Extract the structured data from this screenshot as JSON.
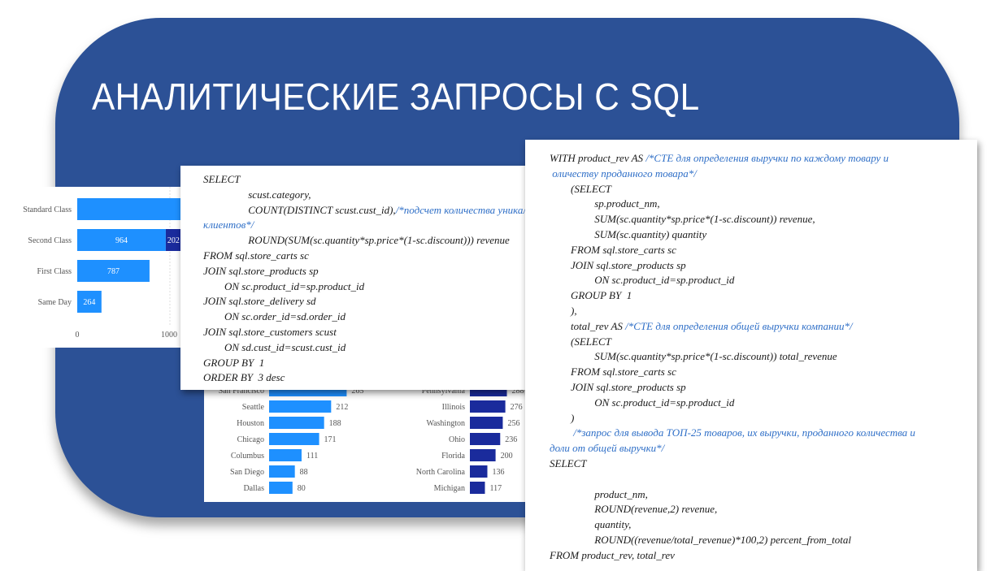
{
  "title": "АНАЛИТИЧЕСКИЕ ЗАПРОСЫ С SQL",
  "colors": {
    "banner": "#2c5196",
    "bar_primary": "#1e90ff",
    "bar_secondary": "#1a2b9c",
    "comment": "#2f6fc7"
  },
  "chart_data": [
    {
      "type": "bar",
      "orientation": "horizontal",
      "categories": [
        "Standard Class",
        "Second Class",
        "First Class",
        "Same Day"
      ],
      "values": [
        null,
        964,
        787,
        264
      ],
      "secondary_labels": [
        "",
        "202",
        "",
        ""
      ],
      "x_ticks": [
        "0",
        "1000"
      ]
    },
    {
      "type": "bar",
      "orientation": "horizontal",
      "categories": [
        "San Francisco",
        "Seattle",
        "Houston",
        "Chicago",
        "Columbus",
        "San Diego",
        "Dallas"
      ],
      "values": [
        265,
        212,
        188,
        171,
        111,
        88,
        80
      ],
      "value_labels": [
        "265",
        "212",
        "188",
        "171",
        "111",
        "88",
        "80"
      ]
    },
    {
      "type": "bar",
      "orientation": "horizontal",
      "categories": [
        "Pennsylvania",
        "Illinois",
        "Washington",
        "Ohio",
        "Florida",
        "North Carolina",
        "Michigan"
      ],
      "values": [
        288,
        276,
        256,
        236,
        200,
        136,
        117
      ],
      "value_labels": [
        "288",
        "276",
        "256",
        "236",
        "200",
        "136",
        "117"
      ]
    }
  ],
  "code1": [
    [
      {
        "t": "SELECT"
      }
    ],
    [
      {
        "t": "                 scust.category,"
      }
    ],
    [
      {
        "t": "                 COUNT(DISTINCT scust.cust_id),"
      },
      {
        "t": "/*подсчет количества уникальных",
        "c": 1
      }
    ],
    [
      {
        "t": "клиентов*/",
        "c": 1
      }
    ],
    [
      {
        "t": "                 ROUND(SUM(sc.quantity*sp.price*(1-sc.discount))) revenue"
      }
    ],
    [
      {
        "t": "FROM sql.store_carts sc"
      }
    ],
    [
      {
        "t": "JOIN sql.store_products sp"
      }
    ],
    [
      {
        "t": "        ON sc.product_id=sp.product_id"
      }
    ],
    [
      {
        "t": "JOIN sql.store_delivery sd"
      }
    ],
    [
      {
        "t": "        ON sc.order_id=sd.order_id"
      }
    ],
    [
      {
        "t": "JOIN sql.store_customers scust"
      }
    ],
    [
      {
        "t": "        ON sd.cust_id=scust.cust_id"
      }
    ],
    [
      {
        "t": "GROUP BY  1"
      }
    ],
    [
      {
        "t": "ORDER BY  3 desc"
      }
    ]
  ],
  "code2": [
    [
      {
        "t": "WITH product_rev AS "
      },
      {
        "t": "/*CTE для определения выручки по каждому товару и",
        "c": 1
      }
    ],
    [
      {
        "t": " оличеству проданного товара*/",
        "c": 1
      }
    ],
    [
      {
        "t": "        (SELECT"
      }
    ],
    [
      {
        "t": "                 sp.product_nm,"
      }
    ],
    [
      {
        "t": "                 SUM(sc.quantity*sp.price*(1-sc.discount)) revenue,"
      }
    ],
    [
      {
        "t": "                 SUM(sc.quantity) quantity"
      }
    ],
    [
      {
        "t": "        FROM sql.store_carts sc"
      }
    ],
    [
      {
        "t": "        JOIN sql.store_products sp"
      }
    ],
    [
      {
        "t": "                 ON sc.product_id=sp.product_id"
      }
    ],
    [
      {
        "t": "        GROUP BY  1"
      }
    ],
    [
      {
        "t": "        ),"
      }
    ],
    [
      {
        "t": "        total_rev AS "
      },
      {
        "t": "/*CTE для определения общей выручки компании*/",
        "c": 1
      }
    ],
    [
      {
        "t": "        (SELECT"
      }
    ],
    [
      {
        "t": "                 SUM(sc.quantity*sp.price*(1-sc.discount)) total_revenue"
      }
    ],
    [
      {
        "t": "        FROM sql.store_carts sc"
      }
    ],
    [
      {
        "t": "        JOIN sql.store_products sp"
      }
    ],
    [
      {
        "t": "                 ON sc.product_id=sp.product_id"
      }
    ],
    [
      {
        "t": "        )"
      }
    ],
    [
      {
        "t": "         /*запрос для вывода ТОП-25 товаров, их выручки, проданного количества и",
        "c": 1
      }
    ],
    [
      {
        "t": "доли от общей выручки*/",
        "c": 1
      }
    ],
    [
      {
        "t": "SELECT"
      }
    ],
    [
      {
        "t": ""
      }
    ],
    [
      {
        "t": "                 product_nm,"
      }
    ],
    [
      {
        "t": "                 ROUND(revenue,2) revenue,"
      }
    ],
    [
      {
        "t": "                 quantity,"
      }
    ],
    [
      {
        "t": "                 ROUND((revenue/total_revenue)*100,2) percent_from_total"
      }
    ],
    [
      {
        "t": "FROM product_rev, total_rev"
      }
    ]
  ]
}
